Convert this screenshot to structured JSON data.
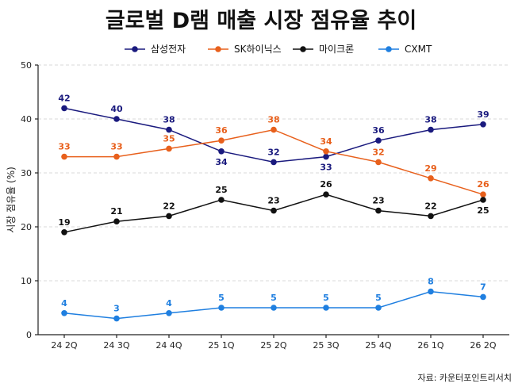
{
  "chart_data": {
    "type": "line",
    "title": "글로벌 D램 매출 시장 점유율 추이",
    "xlabel": "",
    "ylabel": "시장 점유율 (%)",
    "categories": [
      "24 2Q",
      "24 3Q",
      "24 4Q",
      "25 1Q",
      "25 2Q",
      "25 3Q",
      "25 4Q",
      "26 1Q",
      "26 2Q"
    ],
    "ylim": [
      0,
      50
    ],
    "yticks": [
      0,
      10,
      20,
      30,
      40,
      50
    ],
    "grid": true,
    "legend_position": "top-center",
    "series": [
      {
        "name": "삼성전자",
        "color": "#1a1a7e",
        "values": [
          42,
          40,
          38,
          34,
          32,
          33,
          36,
          38,
          39
        ],
        "label_values": [
          42,
          40,
          38,
          34,
          32,
          33,
          36,
          38,
          39
        ],
        "label_side": [
          "above",
          "above",
          "above",
          "below",
          "above",
          "below",
          "above",
          "above",
          "above"
        ]
      },
      {
        "name": "SK하이닉스",
        "color": "#e8601c",
        "values": [
          33,
          33,
          34.5,
          36,
          38,
          34,
          32,
          29,
          26
        ],
        "label_values": [
          33,
          33,
          35,
          36,
          38,
          34,
          32,
          29,
          26
        ],
        "label_side": [
          "above",
          "above",
          "above",
          "above",
          "above",
          "above",
          "above",
          "above",
          "above"
        ]
      },
      {
        "name": "마이크론",
        "color": "#111111",
        "values": [
          19,
          21,
          22,
          25,
          23,
          26,
          23,
          22,
          25
        ],
        "label_values": [
          19,
          21,
          22,
          25,
          23,
          26,
          23,
          22,
          25
        ],
        "label_side": [
          "above",
          "above",
          "above",
          "above",
          "above",
          "above",
          "above",
          "above",
          "below"
        ]
      },
      {
        "name": "CXMT",
        "color": "#1f7fe0",
        "values": [
          4,
          3,
          4,
          5,
          5,
          5,
          5,
          8,
          7
        ],
        "label_values": [
          4,
          3,
          4,
          5,
          5,
          5,
          5,
          8,
          7
        ],
        "label_side": [
          "above",
          "above",
          "above",
          "above",
          "above",
          "above",
          "above",
          "above",
          "above"
        ]
      }
    ],
    "source": "자료: 카운터포인트리서치"
  }
}
